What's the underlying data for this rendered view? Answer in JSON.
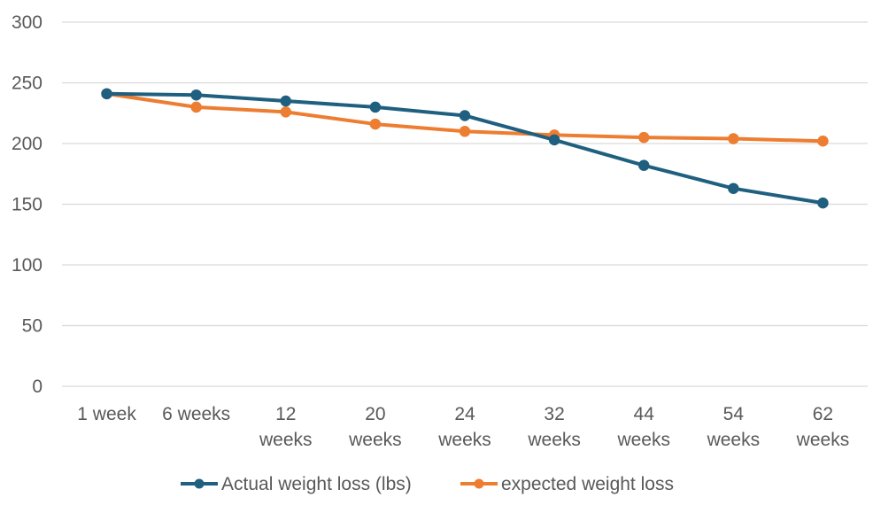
{
  "chart_data": {
    "type": "line",
    "categories": [
      [
        "1 week"
      ],
      [
        "6 weeks"
      ],
      [
        "12",
        "weeks"
      ],
      [
        "20",
        "weeks"
      ],
      [
        "24",
        "weeks"
      ],
      [
        "32",
        "weeks"
      ],
      [
        "44",
        "weeks"
      ],
      [
        "54",
        "weeks"
      ],
      [
        "62",
        "weeks"
      ]
    ],
    "series": [
      {
        "name": "Actual weight loss (lbs)",
        "color": "#1f5f7f",
        "values": [
          241,
          240,
          235,
          230,
          223,
          203,
          182,
          163,
          151
        ]
      },
      {
        "name": "expected weight loss",
        "color": "#ed7d31",
        "values": [
          241,
          230,
          226,
          216,
          210,
          207,
          205,
          204,
          202
        ]
      }
    ],
    "ylim": [
      0,
      300
    ],
    "yticks": [
      0,
      50,
      100,
      150,
      200,
      250,
      300
    ],
    "grid": true,
    "legend_position": "bottom",
    "title": "",
    "xlabel": "",
    "ylabel": ""
  }
}
